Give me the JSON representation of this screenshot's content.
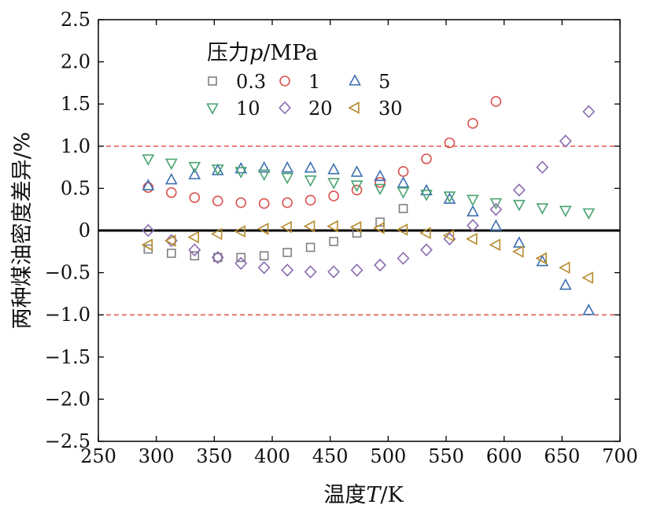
{
  "chart_data": {
    "type": "scatter",
    "xlabel_parts": [
      "温度",
      "T",
      "/K"
    ],
    "ylabel": "两种煤油密度差异/%",
    "xlim": [
      250,
      700
    ],
    "ylim": [
      -2.5,
      2.5
    ],
    "xticks": [
      250,
      300,
      350,
      400,
      450,
      500,
      550,
      600,
      650,
      700
    ],
    "yticks": [
      2.5,
      2.0,
      1.5,
      1.0,
      0.5,
      0,
      -0.5,
      -1.0,
      -1.5,
      -2.0,
      -2.5
    ],
    "ytick_labels": [
      "2.5",
      "2.0",
      "1.5",
      "1.0",
      "0.5",
      "0",
      "−0.5",
      "−1.0",
      "−1.5",
      "−2.0",
      "−2.5"
    ],
    "reference_lines": [
      {
        "y": 1.0,
        "style": "dashed",
        "color": "#e0453e"
      },
      {
        "y": -1.0,
        "style": "dashed",
        "color": "#e0453e"
      },
      {
        "y": 0,
        "style": "solid",
        "color": "#000000"
      }
    ],
    "legend_title_parts": [
      "压力",
      "p",
      "/MPa"
    ],
    "legend_placement": "top-left",
    "series": [
      {
        "name": "0.3",
        "marker": "square",
        "color": "#808080",
        "x": [
          293,
          313,
          333,
          353,
          373,
          393,
          413,
          433,
          453,
          473,
          493,
          513
        ],
        "y": [
          -0.22,
          -0.27,
          -0.3,
          -0.32,
          -0.32,
          -0.3,
          -0.26,
          -0.2,
          -0.13,
          -0.03,
          0.1,
          0.26
        ]
      },
      {
        "name": "1",
        "marker": "circle",
        "color": "#d9534f",
        "x": [
          293,
          313,
          333,
          353,
          373,
          393,
          413,
          433,
          453,
          473,
          493,
          513,
          533,
          553,
          573,
          593
        ],
        "y": [
          0.51,
          0.45,
          0.39,
          0.35,
          0.33,
          0.32,
          0.33,
          0.36,
          0.41,
          0.48,
          0.57,
          0.7,
          0.85,
          1.04,
          1.27,
          1.53
        ]
      },
      {
        "name": "5",
        "marker": "triangle-up",
        "color": "#3b6fb0",
        "x": [
          293,
          313,
          333,
          353,
          373,
          393,
          413,
          433,
          453,
          473,
          493,
          513,
          533,
          553,
          573,
          593,
          613,
          633,
          653,
          673
        ],
        "y": [
          0.53,
          0.6,
          0.66,
          0.71,
          0.73,
          0.74,
          0.74,
          0.74,
          0.72,
          0.69,
          0.64,
          0.56,
          0.47,
          0.37,
          0.22,
          0.05,
          -0.15,
          -0.37,
          -0.65,
          -0.95
        ]
      },
      {
        "name": "10",
        "marker": "triangle-down",
        "color": "#4aa36f",
        "x": [
          293,
          313,
          333,
          353,
          373,
          393,
          413,
          433,
          453,
          473,
          493,
          513,
          533,
          553,
          573,
          593,
          613,
          633,
          653,
          673
        ],
        "y": [
          0.85,
          0.8,
          0.76,
          0.73,
          0.7,
          0.67,
          0.63,
          0.6,
          0.57,
          0.54,
          0.5,
          0.46,
          0.43,
          0.41,
          0.37,
          0.33,
          0.31,
          0.27,
          0.24,
          0.21
        ]
      },
      {
        "name": "20",
        "marker": "diamond",
        "color": "#8c6bb1",
        "x": [
          293,
          313,
          333,
          353,
          373,
          393,
          413,
          433,
          453,
          473,
          493,
          513,
          533,
          553,
          573,
          593,
          613,
          633,
          653,
          673
        ],
        "y": [
          0,
          -0.12,
          -0.23,
          -0.32,
          -0.39,
          -0.44,
          -0.47,
          -0.49,
          -0.49,
          -0.47,
          -0.41,
          -0.33,
          -0.23,
          -0.1,
          0.06,
          0.25,
          0.48,
          0.75,
          1.06,
          1.41
        ]
      },
      {
        "name": "30",
        "marker": "triangle-left",
        "color": "#b58a2c",
        "x": [
          293,
          313,
          333,
          353,
          373,
          393,
          413,
          433,
          453,
          473,
          493,
          513,
          533,
          553,
          573,
          593,
          613,
          633,
          653,
          673
        ],
        "y": [
          -0.17,
          -0.12,
          -0.08,
          -0.04,
          -0.01,
          0.02,
          0.04,
          0.05,
          0.05,
          0.04,
          0.03,
          0.01,
          -0.03,
          -0.06,
          -0.1,
          -0.17,
          -0.25,
          -0.33,
          -0.44,
          -0.56
        ]
      }
    ]
  }
}
